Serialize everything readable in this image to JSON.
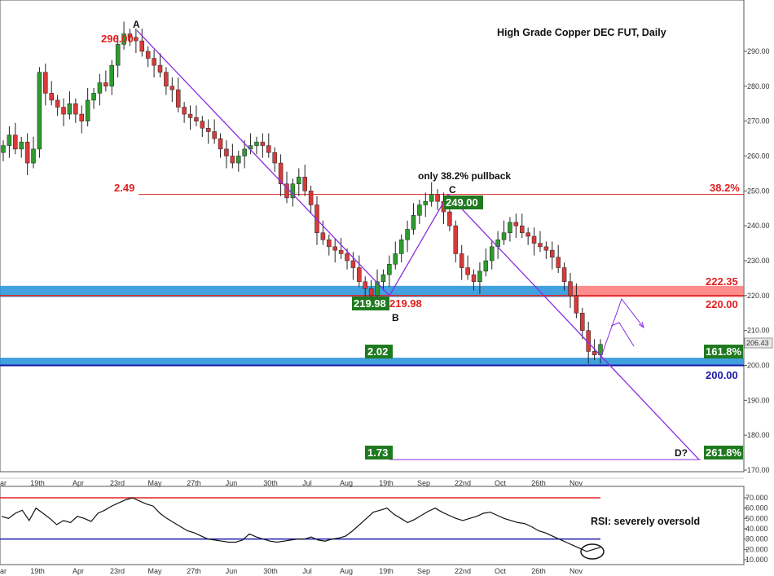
{
  "chart_data": {
    "type": "candlestick",
    "title": "High Grade Copper DEC FUT, Daily",
    "price_axis": {
      "ticks": [
        290,
        280,
        270,
        260,
        250,
        240,
        230,
        220,
        210,
        200,
        190,
        180,
        170
      ],
      "tick_labels": [
        "290.00",
        "280.00",
        "270.00",
        "260.00",
        "250.00",
        "240.00",
        "230.00",
        "220.00",
        "210.00",
        "200.00",
        "190.00",
        "180.00",
        "170.00"
      ],
      "last_price": "206.43"
    },
    "rsi_axis": {
      "ticks": [
        70,
        60,
        50,
        40,
        30,
        20,
        10
      ],
      "tick_labels": [
        "70.000",
        "60.000",
        "50.000",
        "40.000",
        "30.000",
        "20.000",
        "10.000"
      ],
      "overbought": 70,
      "oversold": 30
    },
    "x_labels": [
      "ar",
      "19th",
      "Apr",
      "23rd",
      "May",
      "27th",
      "Jun",
      "30th",
      "Jul",
      "Aug",
      "19th",
      "Sep",
      "22nd",
      "Oct",
      "26th",
      "Nov"
    ],
    "pattern_points": [
      {
        "label": "A",
        "price": 296.0,
        "price_label": "296.00"
      },
      {
        "label": "B",
        "price": 219.98,
        "price_label": "219.98"
      },
      {
        "label": "C",
        "price": 249.0,
        "price_label": "249.00"
      },
      {
        "label": "D?",
        "price": 173.0
      }
    ],
    "levels": [
      {
        "name": "38.2% retracement",
        "price": 249.0,
        "right_label": "38.2%",
        "left_label": "2.49"
      },
      {
        "name": "resistance",
        "price": 222.35,
        "label": "222.35"
      },
      {
        "name": "resistance",
        "price": 220.0,
        "label": "220.00"
      },
      {
        "name": "161.8% extension",
        "price": 202.0,
        "right_label": "161.8%",
        "left_label": "2.02"
      },
      {
        "name": "support",
        "price": 200.0,
        "label": "200.00"
      },
      {
        "name": "261.8% extension",
        "price": 173.0,
        "right_label": "261.8%",
        "left_label": "1.73"
      }
    ],
    "price_series": [
      263,
      266,
      262,
      264,
      258,
      262,
      284,
      278,
      276,
      274,
      272,
      275,
      272,
      270,
      276,
      278,
      281,
      280,
      286,
      292,
      295,
      294,
      293,
      290,
      288,
      286,
      284,
      280,
      279,
      274,
      272,
      271,
      270,
      268,
      267,
      265,
      262,
      260,
      258,
      260,
      262,
      263,
      264,
      263,
      261,
      258,
      252,
      248,
      252,
      254,
      250,
      246,
      238,
      236,
      234,
      233,
      232,
      230,
      228,
      224,
      222,
      220,
      224,
      226,
      229,
      232,
      236,
      239,
      243,
      246,
      247,
      249,
      247,
      244,
      240,
      232,
      228,
      226,
      224,
      227,
      230,
      234,
      236,
      238,
      241,
      240,
      238,
      237,
      235,
      234,
      233,
      231,
      228,
      224,
      220,
      215,
      210,
      204,
      203,
      206
    ],
    "rsi_series": [
      52,
      50,
      55,
      58,
      48,
      60,
      55,
      50,
      44,
      48,
      46,
      52,
      50,
      47,
      55,
      58,
      62,
      65,
      68,
      70,
      67,
      64,
      62,
      55,
      50,
      46,
      42,
      38,
      36,
      33,
      30,
      29,
      28,
      27,
      27,
      29,
      35,
      32,
      30,
      28,
      27,
      28,
      29,
      30,
      30,
      32,
      29,
      28,
      30,
      31,
      33,
      38,
      44,
      50,
      56,
      58,
      60,
      54,
      50,
      46,
      49,
      53,
      57,
      60,
      56,
      53,
      50,
      48,
      50,
      52,
      55,
      56,
      53,
      50,
      48,
      46,
      45,
      42,
      38,
      36,
      33,
      30,
      27,
      24,
      21,
      18,
      20,
      22
    ],
    "trendlines": [
      {
        "from": "A",
        "to": "B"
      },
      {
        "from": "B",
        "to": "C"
      },
      {
        "from": "C",
        "to": "D?"
      }
    ]
  },
  "annotations": {
    "title": "High Grade Copper DEC FUT, Daily",
    "pullback": "only 38.2% pullback",
    "rsi_note": "RSI: severely oversold"
  },
  "colors": {
    "up_candle": "#2e9b2e",
    "down_candle": "#d83a3a",
    "trendline": "#8a2be2",
    "resistance_zone": "#ff6666",
    "support_zone": "#1e90d8",
    "label_red": "#e02020",
    "label_blue": "#1a1aa8",
    "label_green_bg": "#1f7a1f"
  }
}
